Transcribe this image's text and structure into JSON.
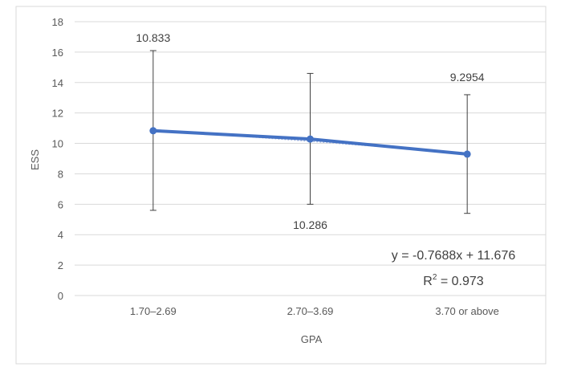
{
  "chart_data": {
    "type": "line",
    "title": "",
    "xlabel": "GPA",
    "ylabel": "ESS",
    "categories": [
      "1.70–2.69",
      "2.70–3.69",
      "3.70 or above"
    ],
    "series": [
      {
        "values": [
          10.833,
          10.286,
          9.2954
        ],
        "error_upper": [
          16.1,
          14.6,
          13.2
        ],
        "error_lower": [
          5.6,
          6.0,
          5.4
        ],
        "data_labels": [
          "10.833",
          "10.286",
          "9.2954"
        ],
        "color": "#4472c4"
      }
    ],
    "ylim": [
      0,
      18
    ],
    "yticks": [
      0,
      2,
      4,
      6,
      8,
      10,
      12,
      14,
      16,
      18
    ],
    "y_tick_labels": [
      "0",
      "2",
      "4",
      "6",
      "8",
      "10",
      "12",
      "14",
      "16",
      "18"
    ],
    "grid": true,
    "legend": "none",
    "trendline": {
      "type": "linear",
      "slope": -0.7688,
      "intercept": 11.676,
      "equation": "y = -0.7688x + 11.676",
      "r_squared_prefix": "R",
      "r_squared_sup": "2",
      "r_squared_value": " = 0.973",
      "color": "#a5b8e0"
    },
    "frame_color": "#d9d9d9"
  }
}
